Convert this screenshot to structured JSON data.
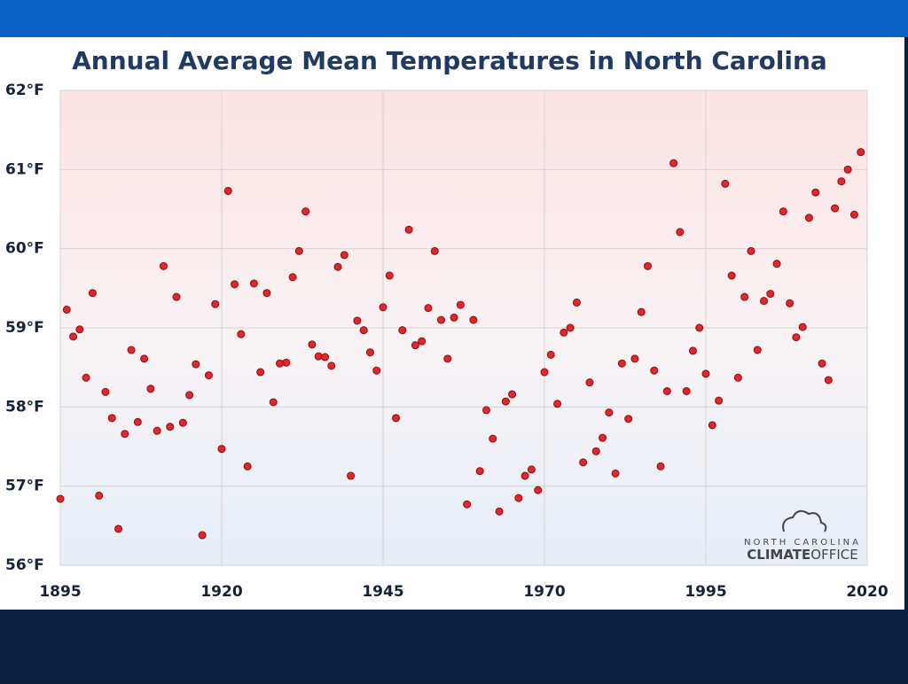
{
  "chart_data": {
    "type": "scatter",
    "title": "Annual Average Mean Temperatures in North Carolina",
    "color": "#e8242a",
    "xlim": [
      1895,
      2020
    ],
    "xticks": [
      1895,
      1920,
      1945,
      1970,
      1995,
      2020
    ],
    "ylim": [
      56,
      62
    ],
    "yticks": [
      {
        "value": 56,
        "label": "56°F"
      },
      {
        "value": 57,
        "label": "57°F"
      },
      {
        "value": 58,
        "label": "58°F"
      },
      {
        "value": 59,
        "label": "59°F"
      },
      {
        "value": 60,
        "label": "60°F"
      },
      {
        "value": 61,
        "label": "61°F"
      },
      {
        "value": 62,
        "label": "62°F"
      }
    ],
    "grid": true,
    "x": [
      1895,
      1896,
      1897,
      1898,
      1899,
      1900,
      1901,
      1902,
      1903,
      1904,
      1905,
      1906,
      1907,
      1908,
      1909,
      1910,
      1911,
      1912,
      1913,
      1914,
      1915,
      1916,
      1917,
      1918,
      1919,
      1920,
      1921,
      1922,
      1923,
      1924,
      1925,
      1926,
      1927,
      1928,
      1929,
      1930,
      1931,
      1932,
      1933,
      1934,
      1935,
      1936,
      1937,
      1938,
      1939,
      1940,
      1941,
      1942,
      1943,
      1944,
      1945,
      1946,
      1947,
      1948,
      1949,
      1950,
      1951,
      1952,
      1953,
      1954,
      1955,
      1956,
      1957,
      1958,
      1959,
      1960,
      1961,
      1962,
      1963,
      1964,
      1965,
      1966,
      1967,
      1968,
      1969,
      1970,
      1971,
      1972,
      1973,
      1974,
      1975,
      1976,
      1977,
      1978,
      1979,
      1980,
      1981,
      1982,
      1983,
      1984,
      1985,
      1986,
      1987,
      1988,
      1989,
      1990,
      1991,
      1992,
      1993,
      1994,
      1995,
      1996,
      1997,
      1998,
      1999,
      2000,
      2001,
      2002,
      2003,
      2004,
      2005,
      2006,
      2007,
      2008,
      2009,
      2010,
      2011,
      2012,
      2013,
      2014,
      2015,
      2016,
      2017,
      2018,
      2019
    ],
    "values": [
      56.84,
      59.23,
      58.89,
      58.98,
      58.37,
      59.44,
      56.88,
      58.19,
      57.86,
      56.46,
      57.66,
      58.72,
      57.81,
      58.61,
      58.23,
      57.7,
      59.78,
      57.75,
      59.39,
      57.8,
      58.15,
      58.54,
      56.38,
      58.4,
      59.3,
      57.47,
      60.73,
      59.55,
      58.92,
      57.25,
      59.56,
      58.44,
      59.44,
      58.06,
      58.55,
      58.56,
      59.64,
      59.97,
      60.47,
      58.79,
      58.64,
      58.63,
      58.52,
      59.77,
      59.92,
      57.13,
      59.09,
      58.97,
      58.69,
      58.46,
      59.26,
      59.66,
      57.86,
      58.97,
      60.24,
      58.78,
      58.83,
      59.25,
      59.97,
      59.1,
      58.61,
      59.13,
      59.29,
      56.77,
      59.1,
      57.19,
      57.96,
      57.6,
      56.68,
      58.07,
      58.16,
      56.85,
      57.13,
      57.21,
      56.95,
      58.44,
      58.66,
      58.04,
      58.94,
      59.0,
      59.32,
      57.3,
      58.31,
      57.44,
      57.61,
      57.93,
      57.16,
      58.55,
      57.85,
      58.61,
      59.2,
      59.78,
      58.46,
      57.25,
      58.2,
      61.08,
      60.21,
      58.2,
      58.71,
      59.0,
      58.42,
      57.77,
      58.08,
      60.82,
      59.66,
      58.37,
      59.39,
      59.97,
      58.72,
      59.34,
      59.43,
      59.81,
      60.47,
      59.31,
      58.88,
      59.01,
      60.39,
      60.71,
      58.55,
      58.34,
      60.51,
      60.85,
      61.0,
      60.43,
      61.22
    ]
  },
  "logo": {
    "line1": "NORTH CAROLINA",
    "line2a": "CLIMATE",
    "line2b": "OFFICE"
  }
}
